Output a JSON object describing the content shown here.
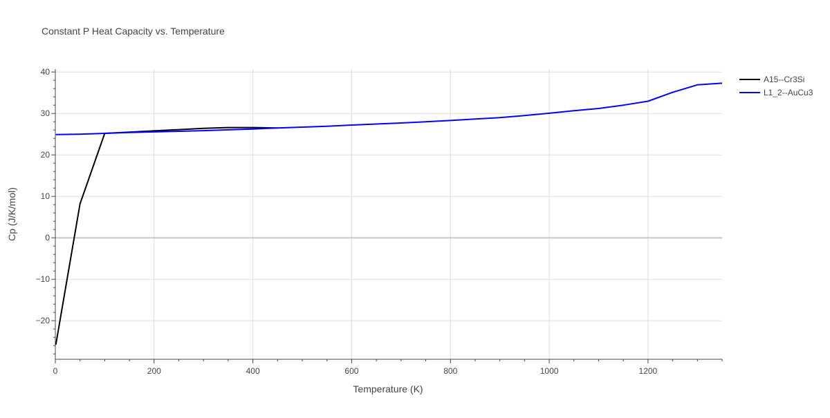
{
  "chart_data": {
    "type": "line",
    "title": "Constant P Heat Capacity vs. Temperature",
    "xlabel": "Temperature (K)",
    "ylabel": "Cp (J/K/mol)",
    "xlim": [
      0,
      1350
    ],
    "ylim": [
      -29.3,
      40.7
    ],
    "x_ticks": [
      0,
      200,
      400,
      600,
      800,
      1000,
      1200
    ],
    "y_ticks": [
      -20,
      -10,
      0,
      10,
      20,
      30,
      40
    ],
    "x_tick_labels": [
      "0",
      "200",
      "400",
      "600",
      "800",
      "1000",
      "1200"
    ],
    "y_tick_labels": [
      "−20",
      "−10",
      "0",
      "10",
      "20",
      "30",
      "40"
    ],
    "grid": true,
    "legend_position": "top-right",
    "series": [
      {
        "name": "A15--Cr3Si",
        "color": "#000000",
        "x": [
          1,
          50,
          100,
          150,
          200,
          250,
          300,
          350,
          400,
          450
        ],
        "y": [
          -25.8,
          8.2,
          25.2,
          25.5,
          25.8,
          26.1,
          26.4,
          26.6,
          26.6,
          26.5
        ]
      },
      {
        "name": "L1_2--AuCu3",
        "color": "#0000ff",
        "x": [
          1,
          50,
          100,
          150,
          200,
          250,
          300,
          350,
          400,
          450,
          500,
          550,
          600,
          650,
          700,
          750,
          800,
          850,
          900,
          950,
          1000,
          1050,
          1100,
          1150,
          1200,
          1250,
          1300,
          1350
        ],
        "y": [
          24.9,
          25.0,
          25.2,
          25.4,
          25.55,
          25.7,
          25.85,
          26.05,
          26.25,
          26.5,
          26.7,
          26.9,
          27.2,
          27.45,
          27.7,
          28.0,
          28.3,
          28.65,
          29.0,
          29.5,
          30.05,
          30.65,
          31.2,
          32.0,
          32.95,
          35.1,
          36.9,
          37.3
        ]
      }
    ]
  }
}
